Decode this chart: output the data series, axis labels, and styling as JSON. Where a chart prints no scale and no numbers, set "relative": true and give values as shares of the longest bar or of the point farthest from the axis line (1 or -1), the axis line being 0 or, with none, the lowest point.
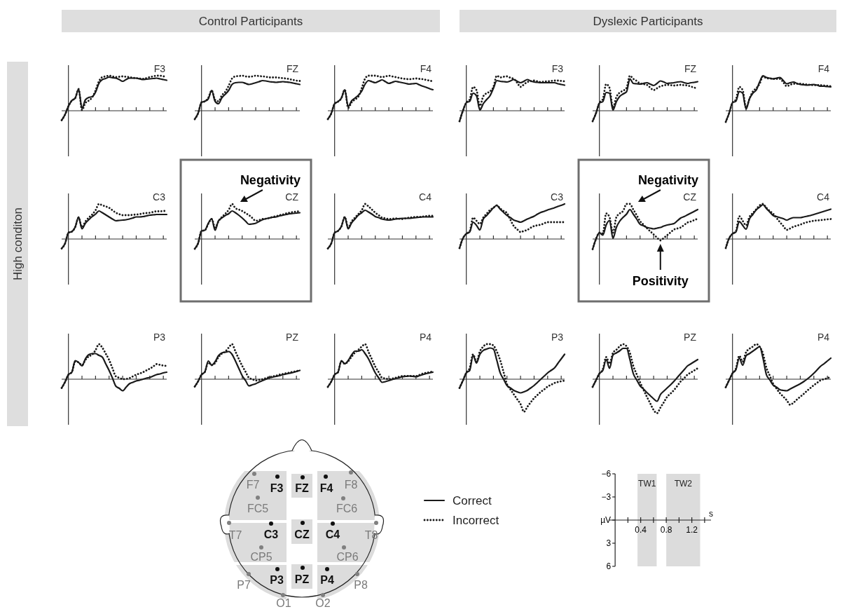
{
  "chart_data": [
    {
      "type": "line",
      "title": "F3",
      "relative": true,
      "categories": [
        null,
        null,
        null,
        null,
        null,
        null,
        null,
        null,
        null,
        null,
        null,
        null,
        null,
        null,
        null,
        null,
        null,
        null,
        null,
        null,
        null,
        null,
        null,
        null,
        null,
        null,
        null,
        null,
        null,
        null,
        null,
        null
      ],
      "legend": "bottom right",
      "series": [
        {
          "name": "Correct",
          "color": "#1a1a1a",
          "line_style": "solid",
          "values": [
            -0.27,
            -0.11,
            0.13,
            0.29,
            0.36,
            0.62,
            0.07,
            0.31,
            0.38,
            0.4,
            0.53,
            0.78,
            0.89,
            0.92,
            0.96,
            0.94,
            0.93,
            0.89,
            0.84,
            0.89,
            0.93,
            0.93,
            0.93,
            0.91,
            0.89,
            0.9,
            0.91,
            0.92,
            0.93,
            0.91,
            0.89,
            0.87
          ]
        },
        {
          "name": "Incorrect",
          "color": "#1a1a1a",
          "line_style": "dotted",
          "values": [
            -0.27,
            -0.11,
            0.13,
            0.29,
            0.36,
            0.62,
            0.02,
            0.22,
            0.29,
            0.38,
            0.58,
            0.84,
            0.96,
            0.98,
            1,
            0.98,
            0.96,
            0.97,
            0.98,
            0.97,
            0.96,
            0.94,
            0.93,
            0.92,
            0.91,
            0.93,
            0.96,
            0.98,
            1,
            1,
            0.98,
            0.98
          ]
        }
      ]
    },
    {
      "type": "line",
      "title": "FZ",
      "relative": true,
      "categories": [
        null,
        null,
        null,
        null,
        null,
        null,
        null,
        null,
        null,
        null,
        null,
        null,
        null,
        null,
        null,
        null,
        null,
        null,
        null,
        null,
        null,
        null,
        null,
        null,
        null,
        null,
        null,
        null,
        null,
        null,
        null,
        null
      ],
      "series": [
        {
          "color": "#1a1a1a",
          "line_style": "solid",
          "values": [
            -0.24,
            -0.07,
            0.24,
            0.27,
            0.34,
            0.58,
            0.27,
            0.2,
            0.37,
            0.47,
            0.58,
            0.75,
            0.8,
            0.81,
            0.81,
            0.78,
            0.75,
            0.77,
            0.8,
            0.83,
            0.86,
            0.85,
            0.83,
            0.82,
            0.81,
            0.82,
            0.83,
            0.82,
            0.81,
            0.79,
            0.77,
            0.75
          ]
        },
        {
          "color": "#1a1a1a",
          "line_style": "dotted",
          "values": [
            -0.24,
            -0.07,
            0.24,
            0.27,
            0.37,
            0.58,
            0.31,
            0.27,
            0.44,
            0.54,
            0.71,
            0.92,
            0.98,
            0.99,
            1,
            0.98,
            0.97,
            0.98,
            1,
            0.99,
            0.98,
            0.97,
            0.95,
            0.95,
            0.95,
            0.94,
            0.93,
            0.92,
            0.9,
            0.88,
            0.86,
            0.85
          ]
        }
      ]
    },
    {
      "type": "line",
      "title": "F4",
      "relative": true,
      "categories": [
        null,
        null,
        null,
        null,
        null,
        null,
        null,
        null,
        null,
        null,
        null,
        null,
        null,
        null,
        null,
        null,
        null,
        null,
        null,
        null,
        null,
        null,
        null,
        null,
        null,
        null,
        null,
        null,
        null,
        null,
        null,
        null
      ],
      "series": [
        {
          "color": "#1a1a1a",
          "line_style": "solid",
          "values": [
            -0.24,
            -0.08,
            0.2,
            0.26,
            0.36,
            0.6,
            0.12,
            0.28,
            0.36,
            0.44,
            0.56,
            0.76,
            0.86,
            0.83,
            0.8,
            0.84,
            0.88,
            0.83,
            0.78,
            0.81,
            0.84,
            0.82,
            0.8,
            0.78,
            0.76,
            0.77,
            0.78,
            0.74,
            0.7,
            0.67,
            0.63,
            0.6
          ]
        },
        {
          "color": "#1a1a1a",
          "line_style": "dotted",
          "values": [
            -0.24,
            -0.08,
            0.2,
            0.26,
            0.36,
            0.6,
            0.08,
            0.24,
            0.32,
            0.4,
            0.64,
            0.92,
            1,
            1,
            1,
            0.98,
            0.96,
            0.98,
            1,
            0.98,
            0.96,
            0.94,
            0.92,
            0.91,
            0.9,
            0.91,
            0.92,
            0.91,
            0.9,
            0.88,
            0.86,
            0.84
          ]
        }
      ]
    },
    {
      "type": "line",
      "title": "C3",
      "relative": true,
      "categories": [
        null,
        null,
        null,
        null,
        null,
        null,
        null,
        null,
        null,
        null,
        null,
        null,
        null,
        null,
        null,
        null,
        null,
        null,
        null,
        null,
        null,
        null,
        null,
        null,
        null,
        null,
        null,
        null,
        null,
        null,
        null,
        null
      ],
      "series": [
        {
          "color": "#1a1a1a",
          "line_style": "solid",
          "values": [
            -0.27,
            -0.13,
            0.18,
            0.21,
            0.34,
            0.63,
            0.29,
            0.45,
            0.55,
            0.64,
            0.71,
            0.8,
            0.75,
            0.69,
            0.63,
            0.57,
            0.52,
            0.53,
            0.54,
            0.55,
            0.57,
            0.6,
            0.63,
            0.63,
            0.64,
            0.66,
            0.68,
            0.69,
            0.7,
            0.7,
            0.7,
            0.7
          ]
        },
        {
          "color": "#1a1a1a",
          "line_style": "dotted",
          "values": [
            -0.27,
            -0.13,
            0.18,
            0.21,
            0.34,
            0.61,
            0.34,
            0.5,
            0.61,
            0.7,
            0.82,
            1,
            0.96,
            0.93,
            0.89,
            0.82,
            0.75,
            0.71,
            0.68,
            0.68,
            0.68,
            0.69,
            0.7,
            0.71,
            0.73,
            0.74,
            0.75,
            0.77,
            0.79,
            0.79,
            0.8,
            0.8
          ]
        }
      ]
    },
    {
      "type": "line",
      "title": "CZ",
      "relative": true,
      "categories": [
        null,
        null,
        null,
        null,
        null,
        null,
        null,
        null,
        null,
        null,
        null,
        null,
        null,
        null,
        null,
        null,
        null,
        null,
        null,
        null,
        null,
        null,
        null,
        null,
        null,
        null,
        null,
        null,
        null,
        null,
        null,
        null
      ],
      "annotations": [
        "Negativity"
      ],
      "series": [
        {
          "color": "#1a1a1a",
          "line_style": "solid",
          "values": [
            -0.28,
            -0.12,
            0.23,
            0.25,
            0.45,
            0.58,
            0.25,
            0.52,
            0.6,
            0.67,
            0.72,
            0.8,
            0.75,
            0.68,
            0.6,
            0.51,
            0.42,
            0.43,
            0.45,
            0.5,
            0.55,
            0.58,
            0.6,
            0.62,
            0.63,
            0.66,
            0.68,
            0.7,
            0.72,
            0.73,
            0.74,
            0.75
          ]
        },
        {
          "color": "#1a1a1a",
          "line_style": "dotted",
          "values": [
            -0.28,
            -0.12,
            0.23,
            0.25,
            0.43,
            0.57,
            0.33,
            0.5,
            0.63,
            0.72,
            0.83,
            1,
            0.88,
            0.84,
            0.8,
            0.74,
            0.68,
            0.6,
            0.52,
            0.54,
            0.57,
            0.58,
            0.6,
            0.63,
            0.65,
            0.68,
            0.7,
            0.73,
            0.75,
            0.77,
            0.78,
            0.8
          ]
        }
      ]
    },
    {
      "type": "line",
      "title": "C4",
      "relative": true,
      "categories": [
        null,
        null,
        null,
        null,
        null,
        null,
        null,
        null,
        null,
        null,
        null,
        null,
        null,
        null,
        null,
        null,
        null,
        null,
        null,
        null,
        null,
        null,
        null,
        null,
        null,
        null,
        null,
        null,
        null,
        null,
        null,
        null
      ],
      "series": [
        {
          "color": "#1a1a1a",
          "line_style": "solid",
          "values": [
            -0.27,
            -0.13,
            0.18,
            0.23,
            0.36,
            0.63,
            0.29,
            0.46,
            0.57,
            0.68,
            0.75,
            0.82,
            0.77,
            0.71,
            0.64,
            0.61,
            0.57,
            0.55,
            0.54,
            0.55,
            0.57,
            0.58,
            0.59,
            0.59,
            0.59,
            0.6,
            0.61,
            0.62,
            0.63,
            0.63,
            0.63,
            0.63
          ]
        },
        {
          "color": "#1a1a1a",
          "line_style": "dotted",
          "values": [
            -0.27,
            -0.13,
            0.18,
            0.23,
            0.36,
            0.63,
            0.32,
            0.5,
            0.61,
            0.71,
            0.82,
            1,
            0.93,
            0.84,
            0.75,
            0.68,
            0.61,
            0.59,
            0.57,
            0.58,
            0.59,
            0.58,
            0.57,
            0.59,
            0.61,
            0.62,
            0.63,
            0.63,
            0.64,
            0.65,
            0.66,
            0.66
          ]
        }
      ]
    },
    {
      "type": "line",
      "title": "P3",
      "relative": true,
      "categories": [
        null,
        null,
        null,
        null,
        null,
        null,
        null,
        null,
        null,
        null,
        null,
        null,
        null,
        null,
        null,
        null,
        null,
        null,
        null,
        null,
        null,
        null,
        null,
        null,
        null,
        null,
        null,
        null,
        null,
        null,
        null,
        null
      ],
      "series": [
        {
          "color": "#1a1a1a",
          "line_style": "solid",
          "values": [
            -0.25,
            -0.08,
            0.13,
            0.2,
            0.53,
            0.48,
            0.38,
            0.58,
            0.7,
            0.73,
            0.73,
            0.68,
            0.63,
            0.44,
            0.25,
            0.03,
            -0.2,
            -0.26,
            -0.33,
            -0.23,
            -0.13,
            -0.09,
            -0.05,
            -0.03,
            0,
            0.03,
            0.05,
            0.09,
            0.13,
            0.15,
            0.18,
            0.2
          ]
        },
        {
          "color": "#1a1a1a",
          "line_style": "dotted",
          "values": [
            -0.25,
            -0.08,
            0.13,
            0.2,
            0.5,
            0.48,
            0.4,
            0.55,
            0.65,
            0.7,
            0.83,
            1,
            0.9,
            0.73,
            0.55,
            0.31,
            0.08,
            0.04,
            0,
            0.01,
            0.03,
            0.08,
            0.13,
            0.16,
            0.2,
            0.25,
            0.3,
            0.36,
            0.43,
            0.41,
            0.39,
            0.38
          ]
        }
      ]
    },
    {
      "type": "line",
      "title": "PZ",
      "relative": true,
      "categories": [
        null,
        null,
        null,
        null,
        null,
        null,
        null,
        null,
        null,
        null,
        null,
        null,
        null,
        null,
        null,
        null,
        null,
        null,
        null,
        null,
        null,
        null,
        null,
        null,
        null,
        null,
        null,
        null,
        null,
        null,
        null,
        null
      ],
      "series": [
        {
          "color": "#1a1a1a",
          "line_style": "solid",
          "values": [
            -0.21,
            -0.06,
            0.13,
            0.21,
            0.52,
            0.4,
            0.5,
            0.67,
            0.75,
            0.77,
            0.79,
            0.71,
            0.52,
            0.31,
            0.1,
            -0.04,
            -0.19,
            -0.16,
            -0.13,
            -0.08,
            -0.04,
            0,
            0.04,
            0.06,
            0.08,
            0.1,
            0.13,
            0.15,
            0.17,
            0.19,
            0.22,
            0.25
          ]
        },
        {
          "color": "#1a1a1a",
          "line_style": "dotted",
          "values": [
            -0.21,
            -0.06,
            0.13,
            0.21,
            0.48,
            0.4,
            0.46,
            0.63,
            0.73,
            0.79,
            0.9,
            1,
            0.79,
            0.58,
            0.38,
            0.21,
            0.04,
            0,
            -0.04,
            -0.02,
            0,
            0.03,
            0.06,
            0.08,
            0.1,
            0.13,
            0.15,
            0.17,
            0.19,
            0.21,
            0.23,
            0.25
          ]
        }
      ]
    },
    {
      "type": "line",
      "title": "P4",
      "relative": true,
      "categories": [
        null,
        null,
        null,
        null,
        null,
        null,
        null,
        null,
        null,
        null,
        null,
        null,
        null,
        null,
        null,
        null,
        null,
        null,
        null,
        null,
        null,
        null,
        null,
        null,
        null,
        null,
        null,
        null,
        null,
        null,
        null,
        null
      ],
      "series": [
        {
          "color": "#1a1a1a",
          "line_style": "solid",
          "values": [
            -0.22,
            -0.07,
            0.13,
            0.2,
            0.53,
            0.44,
            0.53,
            0.69,
            0.8,
            0.8,
            0.84,
            0.73,
            0.58,
            0.38,
            0.18,
            0.04,
            -0.09,
            -0.07,
            -0.04,
            -0.01,
            0.02,
            0.04,
            0.07,
            0.08,
            0.09,
            0.08,
            0.07,
            0.1,
            0.13,
            0.16,
            0.18,
            0.2
          ]
        },
        {
          "color": "#1a1a1a",
          "line_style": "dotted",
          "values": [
            -0.22,
            -0.07,
            0.13,
            0.2,
            0.51,
            0.44,
            0.51,
            0.64,
            0.76,
            0.84,
            0.93,
            1,
            0.78,
            0.57,
            0.36,
            0.2,
            0.04,
            0.02,
            0,
            0.02,
            0.04,
            0.07,
            0.09,
            0.09,
            0.09,
            0.09,
            0.09,
            0.12,
            0.16,
            0.18,
            0.2,
            0.22
          ]
        }
      ]
    },
    {
      "type": "line",
      "title": "F3",
      "relative": true,
      "categories": [
        null,
        null,
        null,
        null,
        null,
        null,
        null,
        null,
        null,
        null,
        null,
        null,
        null,
        null,
        null,
        null,
        null,
        null,
        null,
        null,
        null,
        null,
        null,
        null,
        null,
        null,
        null,
        null,
        null,
        null,
        null,
        null
      ],
      "series": [
        {
          "color": "#1a1a1a",
          "line_style": "solid",
          "values": [
            -0.3,
            0,
            0.23,
            0.27,
            0.5,
            0.43,
            0.02,
            0.2,
            0.32,
            0.43,
            0.64,
            0.86,
            0.84,
            0.83,
            0.82,
            0.85,
            0.89,
            0.84,
            0.8,
            0.84,
            0.89,
            0.85,
            0.82,
            0.81,
            0.8,
            0.8,
            0.8,
            0.8,
            0.8,
            0.77,
            0.75,
            0.73
          ]
        },
        {
          "color": "#1a1a1a",
          "line_style": "dotted",
          "values": [
            -0.3,
            0,
            0.23,
            0.32,
            0.68,
            0.59,
            0.14,
            0.41,
            0.5,
            0.55,
            0.68,
            1,
            0.95,
            0.97,
            0.98,
            0.94,
            0.91,
            0.8,
            0.68,
            0.75,
            0.82,
            0.84,
            0.86,
            0.84,
            0.82,
            0.83,
            0.84,
            0.85,
            0.86,
            0.86,
            0.85,
            0.84
          ]
        }
      ]
    },
    {
      "type": "line",
      "title": "FZ",
      "relative": true,
      "categories": [
        null,
        null,
        null,
        null,
        null,
        null,
        null,
        null,
        null,
        null,
        null,
        null,
        null,
        null,
        null,
        null,
        null,
        null,
        null,
        null,
        null,
        null,
        null,
        null,
        null,
        null,
        null,
        null,
        null,
        null,
        null,
        null
      ],
      "series": [
        {
          "color": "#1a1a1a",
          "line_style": "solid",
          "values": [
            -0.3,
            -0.07,
            0.22,
            0.26,
            0.52,
            0.5,
            0.02,
            0.26,
            0.41,
            0.48,
            0.54,
            0.91,
            0.78,
            0.77,
            0.76,
            0.78,
            0.8,
            0.76,
            0.72,
            0.78,
            0.85,
            0.82,
            0.78,
            0.79,
            0.8,
            0.82,
            0.83,
            0.8,
            0.78,
            0.8,
            0.81,
            0.83
          ]
        },
        {
          "color": "#1a1a1a",
          "line_style": "dotted",
          "values": [
            -0.3,
            -0.07,
            0.22,
            0.33,
            0.76,
            0.65,
            0.09,
            0.39,
            0.52,
            0.57,
            0.65,
            1,
            0.91,
            0.85,
            0.78,
            0.76,
            0.74,
            0.66,
            0.59,
            0.64,
            0.7,
            0.72,
            0.74,
            0.73,
            0.72,
            0.73,
            0.74,
            0.73,
            0.72,
            0.69,
            0.66,
            0.63
          ]
        }
      ]
    },
    {
      "type": "line",
      "title": "F4",
      "relative": true,
      "categories": [
        null,
        null,
        null,
        null,
        null,
        null,
        null,
        null,
        null,
        null,
        null,
        null,
        null,
        null,
        null,
        null,
        null,
        null,
        null,
        null,
        null,
        null,
        null,
        null,
        null,
        null,
        null,
        null,
        null,
        null,
        null,
        null
      ],
      "series": [
        {
          "color": "#1a1a1a",
          "line_style": "solid",
          "values": [
            -0.32,
            -0.07,
            0.23,
            0.27,
            0.55,
            0.5,
            0.05,
            0.34,
            0.5,
            0.59,
            0.82,
            1,
            0.95,
            0.93,
            0.91,
            0.93,
            0.95,
            0.86,
            0.77,
            0.8,
            0.82,
            0.78,
            0.75,
            0.74,
            0.73,
            0.74,
            0.75,
            0.73,
            0.7,
            0.7,
            0.69,
            0.68
          ]
        },
        {
          "color": "#1a1a1a",
          "line_style": "dotted",
          "values": [
            -0.32,
            -0.07,
            0.23,
            0.32,
            0.68,
            0.59,
            0.09,
            0.34,
            0.55,
            0.64,
            0.77,
            0.98,
            0.93,
            0.92,
            0.91,
            0.91,
            0.91,
            0.81,
            0.7,
            0.74,
            0.77,
            0.77,
            0.77,
            0.76,
            0.75,
            0.74,
            0.73,
            0.73,
            0.73,
            0.72,
            0.71,
            0.7
          ]
        }
      ]
    },
    {
      "type": "line",
      "title": "C3",
      "relative": true,
      "categories": [
        null,
        null,
        null,
        null,
        null,
        null,
        null,
        null,
        null,
        null,
        null,
        null,
        null,
        null,
        null,
        null,
        null,
        null,
        null,
        null,
        null,
        null,
        null,
        null,
        null,
        null,
        null,
        null,
        null,
        null,
        null,
        null
      ],
      "series": [
        {
          "color": "#1a1a1a",
          "line_style": "solid",
          "values": [
            -0.26,
            0.02,
            0.15,
            0.2,
            0.48,
            0.39,
            0.26,
            0.57,
            0.67,
            0.78,
            0.89,
            0.96,
            0.85,
            0.76,
            0.67,
            0.61,
            0.54,
            0.51,
            0.48,
            0.52,
            0.57,
            0.61,
            0.65,
            0.71,
            0.76,
            0.79,
            0.83,
            0.86,
            0.89,
            0.93,
            0.96,
            1
          ]
        },
        {
          "color": "#1a1a1a",
          "line_style": "dotted",
          "values": [
            -0.26,
            0.02,
            0.15,
            0.22,
            0.61,
            0.52,
            0.43,
            0.61,
            0.72,
            0.83,
            0.89,
            0.96,
            0.87,
            0.8,
            0.74,
            0.55,
            0.37,
            0.28,
            0.2,
            0.23,
            0.26,
            0.32,
            0.37,
            0.39,
            0.41,
            0.45,
            0.48,
            0.48,
            0.48,
            0.48,
            0.48,
            0.48
          ]
        }
      ]
    },
    {
      "type": "line",
      "title": "CZ",
      "relative": true,
      "categories": [
        null,
        null,
        null,
        null,
        null,
        null,
        null,
        null,
        null,
        null,
        null,
        null,
        null,
        null,
        null,
        null,
        null,
        null,
        null,
        null,
        null,
        null,
        null,
        null,
        null,
        null,
        null,
        null,
        null,
        null,
        null,
        null
      ],
      "annotations": [
        "Negativity",
        "Positivity"
      ],
      "series": [
        {
          "color": "#1a1a1a",
          "line_style": "solid",
          "values": [
            -0.29,
            0,
            0.18,
            0.11,
            0.4,
            0.53,
            0.02,
            0.33,
            0.51,
            0.62,
            0.71,
            0.84,
            0.71,
            0.57,
            0.42,
            0.38,
            0.33,
            0.31,
            0.29,
            0.31,
            0.33,
            0.37,
            0.4,
            0.42,
            0.44,
            0.52,
            0.6,
            0.64,
            0.69,
            0.74,
            0.79,
            0.84
          ]
        },
        {
          "color": "#1a1a1a",
          "line_style": "dotted",
          "values": [
            -0.29,
            0,
            0.18,
            0.16,
            0.73,
            0.62,
            0.18,
            0.62,
            0.73,
            0.8,
            1,
            1,
            0.84,
            0.68,
            0.51,
            0.41,
            0.31,
            0.22,
            0.13,
            0.04,
            -0.04,
            0.03,
            0.11,
            0.19,
            0.27,
            0.3,
            0.33,
            0.4,
            0.47,
            0.5,
            0.54,
            0.58
          ]
        }
      ]
    },
    {
      "type": "line",
      "title": "C4",
      "relative": true,
      "categories": [
        null,
        null,
        null,
        null,
        null,
        null,
        null,
        null,
        null,
        null,
        null,
        null,
        null,
        null,
        null,
        null,
        null,
        null,
        null,
        null,
        null,
        null,
        null,
        null,
        null,
        null,
        null,
        null,
        null,
        null,
        null,
        null
      ],
      "series": [
        {
          "color": "#1a1a1a",
          "line_style": "solid",
          "values": [
            -0.26,
            0.02,
            0.15,
            0.2,
            0.5,
            0.39,
            0.28,
            0.57,
            0.7,
            0.83,
            0.91,
            0.98,
            0.87,
            0.77,
            0.67,
            0.64,
            0.61,
            0.58,
            0.54,
            0.58,
            0.61,
            0.61,
            0.61,
            0.63,
            0.65,
            0.67,
            0.7,
            0.73,
            0.76,
            0.79,
            0.82,
            0.85
          ]
        },
        {
          "color": "#1a1a1a",
          "line_style": "dotted",
          "values": [
            -0.26,
            0.02,
            0.15,
            0.22,
            0.65,
            0.52,
            0.39,
            0.63,
            0.74,
            0.85,
            0.96,
            1,
            0.89,
            0.8,
            0.72,
            0.6,
            0.48,
            0.37,
            0.26,
            0.3,
            0.35,
            0.38,
            0.41,
            0.45,
            0.48,
            0.5,
            0.52,
            0.53,
            0.54,
            0.55,
            0.56,
            0.57
          ]
        }
      ]
    },
    {
      "type": "line",
      "title": "P3",
      "relative": true,
      "categories": [
        null,
        null,
        null,
        null,
        null,
        null,
        null,
        null,
        null,
        null,
        null,
        null,
        null,
        null,
        null,
        null,
        null,
        null,
        null,
        null,
        null,
        null,
        null,
        null,
        null,
        null,
        null,
        null,
        null,
        null,
        null,
        null
      ],
      "series": [
        {
          "color": "#1a1a1a",
          "line_style": "solid",
          "values": [
            -0.25,
            -0.04,
            0.18,
            0.25,
            0.68,
            0.46,
            0.71,
            0.82,
            0.86,
            0.89,
            0.86,
            0.54,
            0.18,
            0,
            -0.18,
            -0.25,
            -0.32,
            -0.36,
            -0.39,
            -0.36,
            -0.32,
            -0.25,
            -0.18,
            -0.09,
            0,
            0.09,
            0.18,
            0.25,
            0.32,
            0.45,
            0.58,
            0.71
          ]
        },
        {
          "color": "#1a1a1a",
          "line_style": "dotted",
          "values": [
            -0.25,
            -0.04,
            0.18,
            0.32,
            0.71,
            0.5,
            0.79,
            0.93,
            1,
            1,
            0.96,
            0.79,
            0.54,
            0.2,
            -0.14,
            -0.29,
            -0.43,
            -0.57,
            -0.71,
            -0.93,
            -0.79,
            -0.66,
            -0.54,
            -0.45,
            -0.36,
            -0.29,
            -0.21,
            -0.16,
            -0.11,
            -0.08,
            -0.06,
            -0.04
          ]
        }
      ]
    },
    {
      "type": "line",
      "title": "PZ",
      "relative": true,
      "categories": [
        null,
        null,
        null,
        null,
        null,
        null,
        null,
        null,
        null,
        null,
        null,
        null,
        null,
        null,
        null,
        null,
        null,
        null,
        null,
        null,
        null,
        null,
        null,
        null,
        null,
        null,
        null,
        null,
        null,
        null,
        null,
        null
      ],
      "series": [
        {
          "color": "#1a1a1a",
          "line_style": "solid",
          "values": [
            -0.22,
            -0.03,
            0.16,
            0.25,
            0.56,
            0.31,
            0.69,
            0.75,
            0.81,
            0.88,
            0.88,
            0.56,
            0.16,
            -0.02,
            -0.19,
            -0.28,
            -0.38,
            -0.47,
            -0.56,
            -0.63,
            -0.44,
            -0.34,
            -0.25,
            -0.16,
            -0.06,
            0.05,
            0.16,
            0.27,
            0.38,
            0.44,
            0.5,
            0.56
          ]
        },
        {
          "color": "#1a1a1a",
          "line_style": "dotted",
          "values": [
            -0.22,
            -0.03,
            0.16,
            0.28,
            0.63,
            0.44,
            0.75,
            0.84,
            0.94,
            1,
            0.94,
            0.75,
            0.38,
            0.14,
            -0.09,
            -0.3,
            -0.5,
            -0.69,
            -0.88,
            -0.97,
            -0.81,
            -0.66,
            -0.5,
            -0.41,
            -0.31,
            -0.19,
            -0.06,
            0.03,
            0.13,
            0.19,
            0.25,
            0.31
          ]
        }
      ]
    },
    {
      "type": "line",
      "title": "P4",
      "relative": true,
      "categories": [
        null,
        null,
        null,
        null,
        null,
        null,
        null,
        null,
        null,
        null,
        null,
        null,
        null,
        null,
        null,
        null,
        null,
        null,
        null,
        null,
        null,
        null,
        null,
        null,
        null,
        null,
        null,
        null,
        null,
        null,
        null,
        null
      ],
      "series": [
        {
          "color": "#1a1a1a",
          "line_style": "solid",
          "values": [
            -0.23,
            -0.03,
            0.17,
            0.27,
            0.6,
            0.4,
            0.67,
            0.73,
            0.8,
            0.87,
            0.93,
            0.6,
            0.13,
            -0.02,
            -0.17,
            -0.23,
            -0.3,
            -0.32,
            -0.33,
            -0.28,
            -0.23,
            -0.18,
            -0.13,
            -0.07,
            0,
            0.08,
            0.17,
            0.27,
            0.37,
            0.44,
            0.52,
            0.6
          ]
        },
        {
          "color": "#1a1a1a",
          "line_style": "dotted",
          "values": [
            -0.23,
            -0.03,
            0.17,
            0.3,
            0.67,
            0.5,
            0.77,
            0.87,
            0.93,
            1,
            0.93,
            0.73,
            0.33,
            0.1,
            -0.13,
            -0.27,
            -0.4,
            -0.5,
            -0.6,
            -0.73,
            -0.67,
            -0.58,
            -0.5,
            -0.42,
            -0.33,
            -0.25,
            -0.17,
            -0.1,
            -0.03,
            0,
            0.03,
            0.07
          ]
        }
      ]
    },
    {
      "type": "other",
      "annotations": [
        "Control Participants",
        "Dyslexic Participants",
        "High conditon"
      ]
    },
    {
      "type": "other",
      "annotations": [
        "F7",
        "F3",
        "FZ",
        "F4",
        "F8",
        "FC5",
        "FC6",
        "T7",
        "C3",
        "CZ",
        "C4",
        "T8",
        "CP5",
        "CP6",
        "P7",
        "P3",
        "PZ",
        "P4",
        "P8",
        "O1",
        "O2"
      ]
    },
    {
      "type": "line",
      "xlim": [
        -0.1,
        1.5
      ],
      "ylim": [
        6,
        -6
      ],
      "xlabel": "s",
      "xticks": [
        {
          "value": 0.2,
          "label": null
        },
        0.4,
        {
          "value": 0.6,
          "label": null
        },
        0.8,
        {
          "value": 1.0,
          "label": null
        },
        1.2,
        {
          "value": 1.4,
          "label": null
        }
      ],
      "yticks": [
        {
          "value": -6,
          "label": "−6"
        },
        {
          "value": -3,
          "label": "−3"
        },
        {
          "value": 0,
          "label": "µV"
        },
        3,
        6
      ],
      "bands": [
        {
          "axis": "x",
          "from": 0.35,
          "to": 0.65,
          "label": "TW1",
          "color": "#dcdcdc"
        },
        {
          "axis": "x",
          "from": 0.8,
          "to": 1.33,
          "label": "TW2",
          "color": "#dcdcdc"
        }
      ]
    }
  ]
}
